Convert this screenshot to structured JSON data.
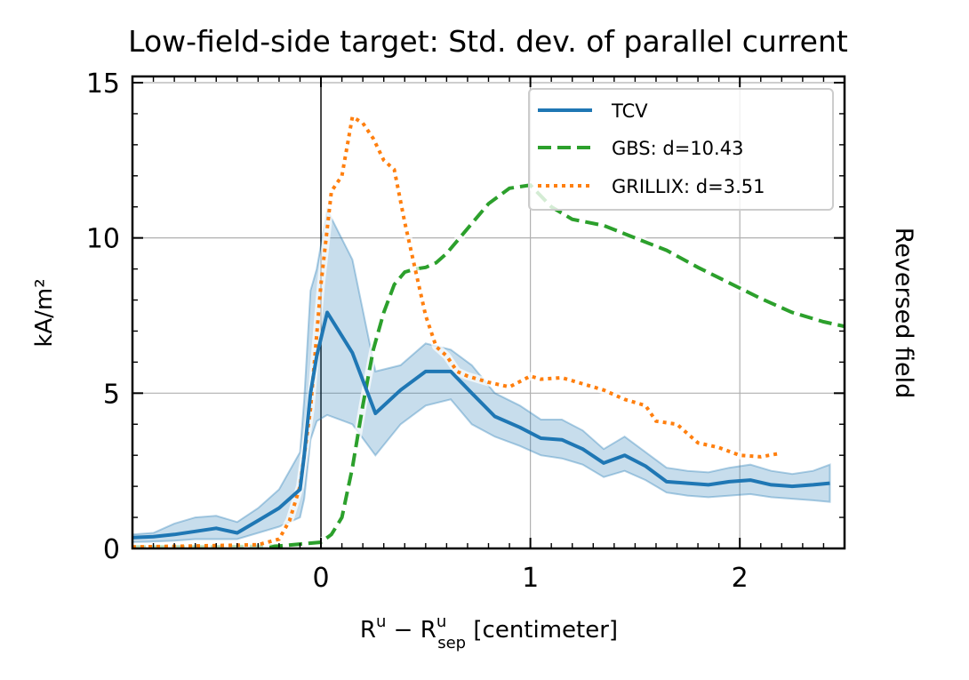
{
  "chart_data": {
    "type": "line",
    "title": "Low-field-side target: Std. dev. of parallel current",
    "xlabel": {
      "base": "R",
      "sup1": "u",
      "minus": " − ",
      "sup2": "u",
      "sub2": "sep",
      "unit": " [centimeter]"
    },
    "ylabel": "kA/m²",
    "side_label": "Reversed field",
    "xlim": [
      -0.9,
      2.5
    ],
    "ylim": [
      0,
      15.2
    ],
    "xticks": [
      0,
      1,
      2
    ],
    "xtick_labels": [
      "0",
      "1",
      "2"
    ],
    "yticks": [
      0,
      5,
      10,
      15
    ],
    "ytick_labels": [
      "0",
      "5",
      "10",
      "15"
    ],
    "grid": true,
    "vline_x": 0,
    "legend_position": "top-right",
    "series": [
      {
        "name": "TCV",
        "style": "solid",
        "color": "#1f77b4",
        "x": [
          -0.9,
          -0.8,
          -0.7,
          -0.6,
          -0.5,
          -0.4,
          -0.3,
          -0.2,
          -0.1,
          -0.08,
          -0.05,
          -0.02,
          0.03,
          0.15,
          0.26,
          0.38,
          0.5,
          0.62,
          0.72,
          0.83,
          0.95,
          1.05,
          1.15,
          1.25,
          1.35,
          1.45,
          1.55,
          1.65,
          1.75,
          1.85,
          1.95,
          2.05,
          2.15,
          2.25,
          2.35,
          2.43
        ],
        "y": [
          0.35,
          0.38,
          0.45,
          0.55,
          0.65,
          0.5,
          0.9,
          1.3,
          1.9,
          3.0,
          5.0,
          6.2,
          7.6,
          6.3,
          4.35,
          5.1,
          5.7,
          5.7,
          5.0,
          4.25,
          3.9,
          3.55,
          3.5,
          3.2,
          2.75,
          3.0,
          2.65,
          2.15,
          2.1,
          2.05,
          2.15,
          2.2,
          2.05,
          2.0,
          2.05,
          2.1
        ],
        "lower": [
          0.2,
          0.22,
          0.25,
          0.3,
          0.3,
          0.3,
          0.5,
          0.7,
          1.0,
          1.6,
          3.5,
          4.1,
          4.3,
          4.0,
          3.0,
          4.0,
          4.6,
          4.8,
          4.0,
          3.6,
          3.3,
          3.0,
          2.9,
          2.7,
          2.3,
          2.5,
          2.2,
          1.8,
          1.7,
          1.65,
          1.7,
          1.75,
          1.65,
          1.6,
          1.55,
          1.5
        ],
        "upper": [
          0.45,
          0.5,
          0.8,
          1.0,
          1.05,
          0.85,
          1.3,
          1.9,
          3.1,
          4.8,
          8.3,
          9.0,
          10.9,
          9.3,
          5.7,
          5.9,
          6.6,
          6.4,
          5.9,
          5.0,
          4.6,
          4.15,
          4.15,
          3.8,
          3.2,
          3.6,
          3.1,
          2.6,
          2.5,
          2.45,
          2.6,
          2.7,
          2.5,
          2.4,
          2.5,
          2.7
        ]
      },
      {
        "name": "GBS: d=10.43",
        "style": "dashed",
        "color": "#2ca02c",
        "x": [
          -0.9,
          -0.5,
          -0.2,
          0.0,
          0.05,
          0.1,
          0.15,
          0.2,
          0.25,
          0.3,
          0.35,
          0.4,
          0.45,
          0.5,
          0.55,
          0.6,
          0.7,
          0.8,
          0.9,
          1.0,
          1.1,
          1.2,
          1.35,
          1.5,
          1.65,
          1.8,
          1.95,
          2.1,
          2.25,
          2.4,
          2.5
        ],
        "y": [
          0.05,
          0.05,
          0.08,
          0.2,
          0.45,
          1.0,
          2.6,
          4.6,
          6.4,
          7.6,
          8.5,
          8.9,
          9.0,
          9.05,
          9.2,
          9.5,
          10.3,
          11.1,
          11.6,
          11.7,
          11.0,
          10.6,
          10.4,
          10.0,
          9.6,
          9.05,
          8.55,
          8.05,
          7.6,
          7.3,
          7.15
        ]
      },
      {
        "name": "GRILLIX: d=3.51",
        "style": "dotted",
        "color": "#ff7f0e",
        "x": [
          -0.9,
          -0.6,
          -0.3,
          -0.2,
          -0.15,
          -0.1,
          -0.05,
          0.0,
          0.05,
          0.1,
          0.15,
          0.2,
          0.25,
          0.3,
          0.35,
          0.4,
          0.45,
          0.5,
          0.55,
          0.6,
          0.65,
          0.7,
          0.8,
          0.9,
          1.0,
          1.05,
          1.15,
          1.25,
          1.35,
          1.45,
          1.55,
          1.6,
          1.7,
          1.8,
          1.9,
          2.0,
          2.1,
          2.18
        ],
        "y": [
          0.05,
          0.08,
          0.12,
          0.3,
          0.9,
          2.0,
          4.5,
          8.5,
          11.5,
          12.0,
          13.9,
          13.7,
          13.2,
          12.5,
          12.2,
          10.5,
          9.0,
          7.5,
          6.5,
          6.2,
          5.7,
          5.55,
          5.35,
          5.2,
          5.55,
          5.45,
          5.5,
          5.3,
          5.1,
          4.8,
          4.6,
          4.1,
          4.0,
          3.4,
          3.25,
          3.0,
          2.95,
          3.05
        ]
      }
    ]
  }
}
